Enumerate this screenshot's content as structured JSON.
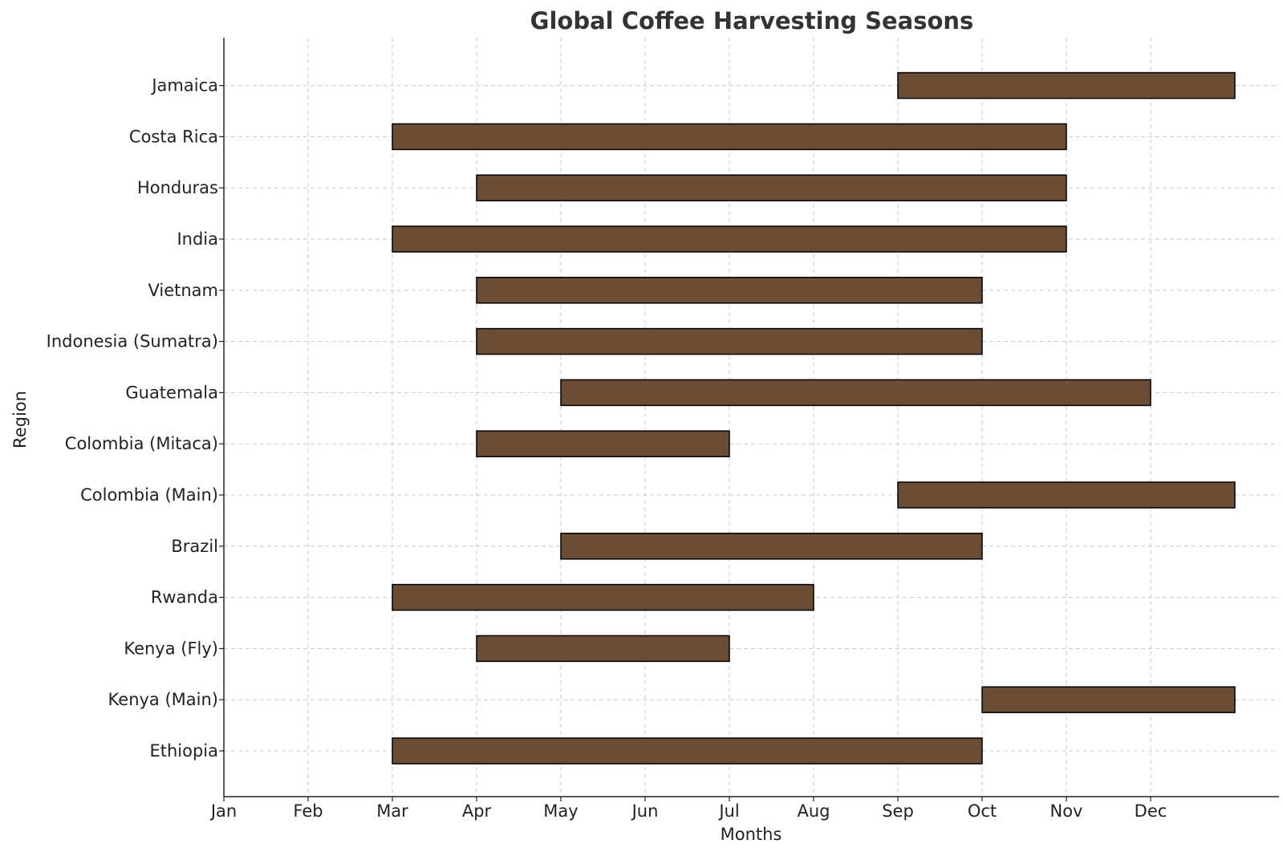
{
  "chart_data": {
    "type": "gantt",
    "title": "Global Coffee Harvesting Seasons",
    "xlabel": "Months",
    "ylabel": "Region",
    "x_ticks": [
      "Jan",
      "Feb",
      "Mar",
      "Apr",
      "May",
      "Jun",
      "Jul",
      "Aug",
      "Sep",
      "Oct",
      "Nov",
      "Dec"
    ],
    "xlim": [
      0,
      12.5
    ],
    "grid": true,
    "bar_color": "#6b4c35",
    "edge_color": "#000000",
    "categories": [
      "Ethiopia",
      "Kenya (Main)",
      "Kenya (Fly)",
      "Rwanda",
      "Brazil",
      "Colombia (Main)",
      "Colombia (Mitaca)",
      "Guatemala",
      "Indonesia (Sumatra)",
      "Vietnam",
      "India",
      "Honduras",
      "Costa Rica",
      "Jamaica"
    ],
    "series": [
      {
        "region": "Ethiopia",
        "start_month": "Mar",
        "end_month": "Oct",
        "start": 2,
        "end": 9
      },
      {
        "region": "Kenya (Main)",
        "start_month": "Oct",
        "end_month": "Dec",
        "start": 9,
        "end": 12
      },
      {
        "region": "Kenya (Fly)",
        "start_month": "Apr",
        "end_month": "Jul",
        "start": 3,
        "end": 6
      },
      {
        "region": "Rwanda",
        "start_month": "Mar",
        "end_month": "Aug",
        "start": 2,
        "end": 7
      },
      {
        "region": "Brazil",
        "start_month": "May",
        "end_month": "Oct",
        "start": 4,
        "end": 9
      },
      {
        "region": "Colombia (Main)",
        "start_month": "Sep",
        "end_month": "Dec",
        "start": 8,
        "end": 12
      },
      {
        "region": "Colombia (Mitaca)",
        "start_month": "Apr",
        "end_month": "Jul",
        "start": 3,
        "end": 6
      },
      {
        "region": "Guatemala",
        "start_month": "May",
        "end_month": "Dec",
        "start": 4,
        "end": 11
      },
      {
        "region": "Indonesia (Sumatra)",
        "start_month": "Apr",
        "end_month": "Oct",
        "start": 3,
        "end": 9
      },
      {
        "region": "Vietnam",
        "start_month": "Apr",
        "end_month": "Oct",
        "start": 3,
        "end": 9
      },
      {
        "region": "India",
        "start_month": "Mar",
        "end_month": "Nov",
        "start": 2,
        "end": 10
      },
      {
        "region": "Honduras",
        "start_month": "Apr",
        "end_month": "Nov",
        "start": 3,
        "end": 10
      },
      {
        "region": "Costa Rica",
        "start_month": "Mar",
        "end_month": "Nov",
        "start": 2,
        "end": 10
      },
      {
        "region": "Jamaica",
        "start_month": "Sep",
        "end_month": "Dec",
        "start": 8,
        "end": 12
      }
    ]
  }
}
